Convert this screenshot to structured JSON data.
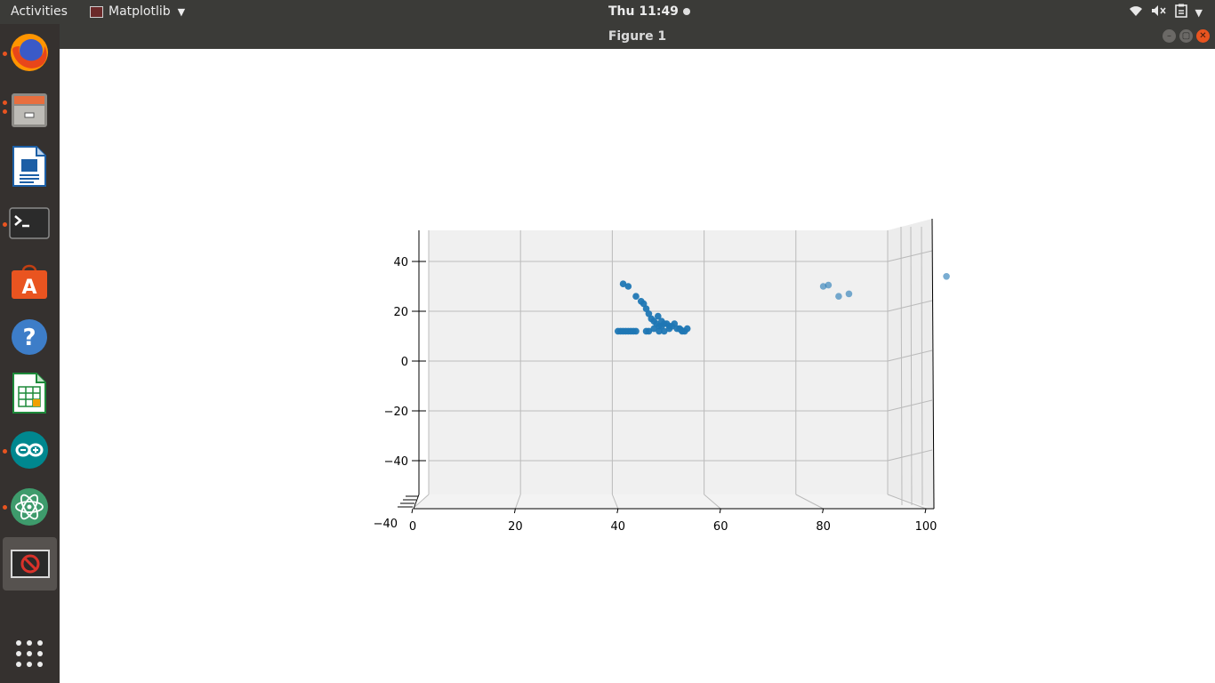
{
  "topbar": {
    "activities": "Activities",
    "app_name": "Matplotlib",
    "clock": "Thu 11:49",
    "tray_icons": [
      "wifi-icon",
      "volume-muted-icon",
      "clipboard-icon",
      "caret-down-icon"
    ]
  },
  "dock": {
    "items": [
      "firefox",
      "files",
      "libreoffice-writer",
      "terminal",
      "software-center",
      "help",
      "libreoffice-calc",
      "arduino",
      "atom",
      "matplotlib"
    ],
    "running": [
      "firefox",
      "files",
      "terminal",
      "arduino",
      "atom",
      "matplotlib"
    ],
    "active": "matplotlib",
    "show_apps_icon": "grid-icon"
  },
  "window": {
    "title": "Figure 1"
  },
  "colors": {
    "accent": "#e95420",
    "points": "#1f77b4",
    "pane": "#f0f0f0",
    "grid": "#bbbbbb"
  },
  "chart_data": {
    "type": "scatter",
    "projection": "3d",
    "xticks": [
      "0",
      "20",
      "40",
      "60",
      "80",
      "100"
    ],
    "zticks": [
      "40",
      "20",
      "0",
      "−20",
      "−40"
    ],
    "yticks_visible": [
      "−40"
    ],
    "xlim": [
      0,
      100
    ],
    "zlim": [
      -50,
      50
    ],
    "grid": true,
    "points": [
      {
        "x": 41,
        "z": 31
      },
      {
        "x": 42,
        "z": 30
      },
      {
        "x": 43.5,
        "z": 26
      },
      {
        "x": 44.5,
        "z": 24
      },
      {
        "x": 45,
        "z": 23
      },
      {
        "x": 45.5,
        "z": 21
      },
      {
        "x": 46,
        "z": 19
      },
      {
        "x": 46.5,
        "z": 17
      },
      {
        "x": 47,
        "z": 16
      },
      {
        "x": 47.5,
        "z": 15
      },
      {
        "x": 48,
        "z": 14
      },
      {
        "x": 48.5,
        "z": 14
      },
      {
        "x": 49,
        "z": 15
      },
      {
        "x": 49.5,
        "z": 15
      },
      {
        "x": 50,
        "z": 14
      },
      {
        "x": 50.5,
        "z": 14
      },
      {
        "x": 51,
        "z": 15
      },
      {
        "x": 51.5,
        "z": 13
      },
      {
        "x": 52,
        "z": 13
      },
      {
        "x": 52.5,
        "z": 12
      },
      {
        "x": 53,
        "z": 12
      },
      {
        "x": 53.5,
        "z": 13
      },
      {
        "x": 47,
        "z": 13
      },
      {
        "x": 46,
        "z": 12
      },
      {
        "x": 48,
        "z": 12
      },
      {
        "x": 49,
        "z": 12
      },
      {
        "x": 50,
        "z": 13
      },
      {
        "x": 48.5,
        "z": 16
      },
      {
        "x": 47.8,
        "z": 18
      },
      {
        "x": 40,
        "z": 12
      },
      {
        "x": 40.5,
        "z": 12
      },
      {
        "x": 41,
        "z": 12
      },
      {
        "x": 41.5,
        "z": 12
      },
      {
        "x": 42,
        "z": 12
      },
      {
        "x": 42.5,
        "z": 12
      },
      {
        "x": 43,
        "z": 12
      },
      {
        "x": 43.5,
        "z": 12
      },
      {
        "x": 45.5,
        "z": 12
      },
      {
        "x": 52.3,
        "z": 12.5
      },
      {
        "x": 80,
        "z": 30,
        "faded": true
      },
      {
        "x": 81,
        "z": 30.5,
        "faded": true
      },
      {
        "x": 83,
        "z": 26,
        "faded": true
      },
      {
        "x": 85,
        "z": 27,
        "faded": true
      },
      {
        "x": 104,
        "z": 34,
        "faded": true
      }
    ]
  }
}
